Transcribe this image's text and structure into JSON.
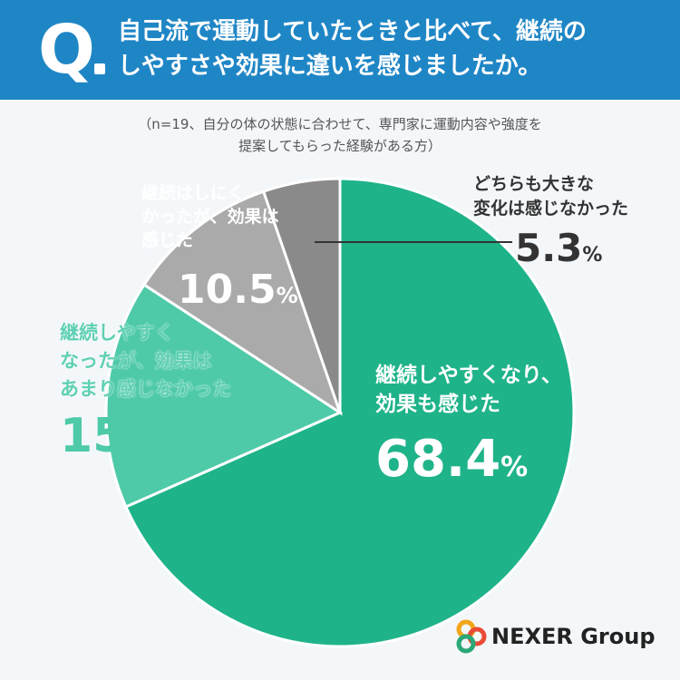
{
  "header": {
    "q_letter": "Q",
    "question_line1": "自己流で運動していたときと比べて、継続の",
    "question_line2": "しやすさや効果に違いを感じましたか。",
    "bg_color": "#1f86c6"
  },
  "subtitle": {
    "line1": "（n=19、自分の体の状態に合わせて、専門家に運動内容や強度を",
    "line2": "提案してもらった経験がある方）"
  },
  "chart_data": {
    "type": "pie",
    "start": "12 o'clock, clockwise",
    "slices": [
      {
        "label_line1": "継続しやすくなり、",
        "label_line2": "効果も感じた",
        "label_line3": "",
        "value": 68.4,
        "color": "#1fb38a"
      },
      {
        "label_line1": "継続しやすく",
        "label_line2": "なったが、効果は",
        "label_line3": "あまり感じなかった",
        "value": 15.8,
        "color": "#4ecaa8"
      },
      {
        "label_line1": "継続はしにく",
        "label_line2": "かったが、効果は",
        "label_line3": "感じた",
        "value": 10.5,
        "color": "#aaaaaa"
      },
      {
        "label_line1": "どちらも大きな",
        "label_line2": "変化は感じなかった",
        "label_line3": "",
        "value": 5.3,
        "color": "#8a8a8a"
      }
    ],
    "unit": "%"
  },
  "labels": {
    "main": {
      "line1": "継続しやすくなり、",
      "line2": "効果も感じた",
      "num": "68.4",
      "unit": "%"
    },
    "a": {
      "line1": "継続しやすく",
      "line2": "なったが、効果は",
      "line3": "あまり感じなかった",
      "num": "15.8",
      "unit": "%"
    },
    "b": {
      "line1": "継続はしにく",
      "line2": "かったが、効果は",
      "line3": "感じた",
      "num": "10.5",
      "unit": "%"
    },
    "c": {
      "line1": "どちらも大きな",
      "line2": "変化は感じなかった",
      "num": "5.3",
      "unit": "%"
    }
  },
  "logo": {
    "text": "NEXER Group",
    "colors": [
      "#f2a51a",
      "#e94b35",
      "#2aa876"
    ]
  }
}
